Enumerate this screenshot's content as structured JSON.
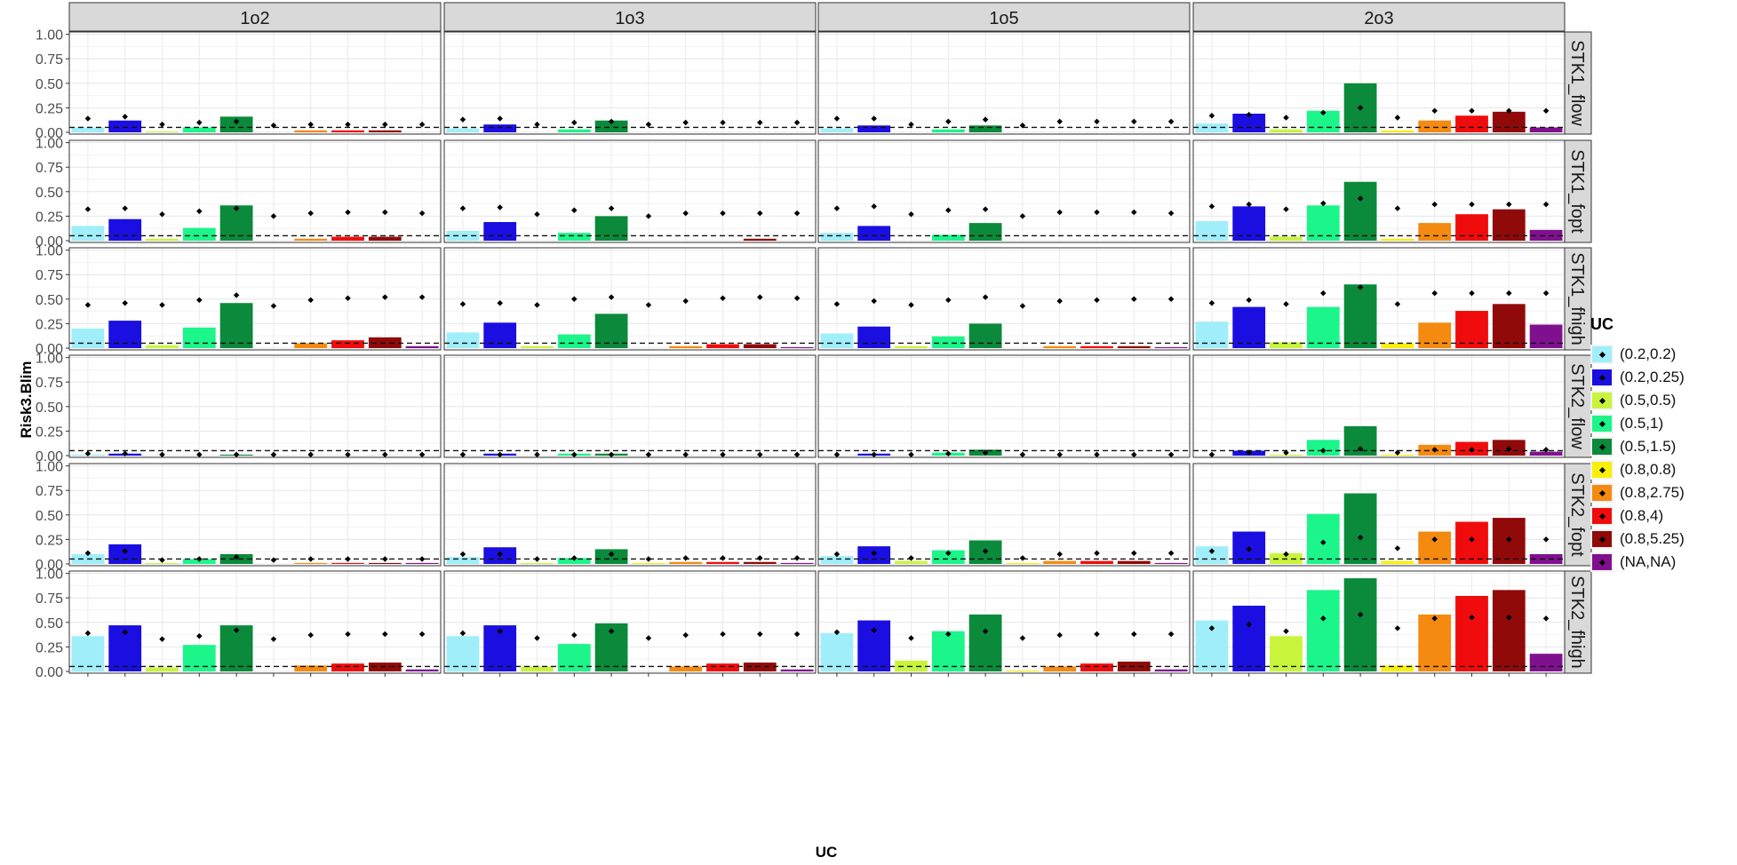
{
  "chart_data": {
    "type": "bar",
    "facet_cols": [
      "1o2",
      "1o3",
      "1o5",
      "2o3"
    ],
    "facet_rows": [
      "STK1_flow",
      "STK1_fopt",
      "STK1_fhigh",
      "STK2_flow",
      "STK2_fopt",
      "STK2_fhigh"
    ],
    "xlabel": "UC",
    "ylabel": "Risk3.Blim",
    "ylim": [
      0,
      1
    ],
    "y_ticks": [
      "0.00",
      "0.25",
      "0.50",
      "0.75",
      "1.00"
    ],
    "reference_line": 0.05,
    "grid": true,
    "legend_title": "UC",
    "legend_position": "right",
    "categories": [
      "(0.2,0.2)",
      "(0.2,0.25)",
      "(0.5,0.5)",
      "(0.5,1)",
      "(0.5,1.5)",
      "(0.8,0.8)",
      "(0.8,2.75)",
      "(0.8,4)",
      "(0.8,5.25)",
      "(NA,NA)"
    ],
    "colors": [
      "#a0eefa",
      "#1a0fe0",
      "#c8f53c",
      "#1cf58a",
      "#0a8a3a",
      "#f8f00a",
      "#f58a10",
      "#f00c0c",
      "#900a0a",
      "#80118e"
    ],
    "panels": [
      {
        "row": "STK1_flow",
        "col": "1o2",
        "bars": [
          0.05,
          0.12,
          0.01,
          0.05,
          0.16,
          0.0,
          0.02,
          0.02,
          0.02,
          0.0
        ],
        "points": [
          0.14,
          0.16,
          0.08,
          0.1,
          0.11,
          0.07,
          0.08,
          0.08,
          0.08,
          0.08
        ]
      },
      {
        "row": "STK1_flow",
        "col": "1o3",
        "bars": [
          0.04,
          0.08,
          0.0,
          0.03,
          0.12,
          0.0,
          0.0,
          0.0,
          0.0,
          0.0
        ],
        "points": [
          0.13,
          0.14,
          0.08,
          0.1,
          0.11,
          0.08,
          0.1,
          0.1,
          0.1,
          0.1
        ]
      },
      {
        "row": "STK1_flow",
        "col": "1o5",
        "bars": [
          0.04,
          0.07,
          0.0,
          0.03,
          0.07,
          0.0,
          0.0,
          0.0,
          0.0,
          0.0
        ],
        "points": [
          0.14,
          0.14,
          0.08,
          0.11,
          0.13,
          0.07,
          0.11,
          0.11,
          0.11,
          0.11
        ]
      },
      {
        "row": "STK1_flow",
        "col": "2o3",
        "bars": [
          0.09,
          0.19,
          0.03,
          0.22,
          0.5,
          0.02,
          0.12,
          0.17,
          0.21,
          0.05
        ],
        "points": [
          0.17,
          0.18,
          0.15,
          0.2,
          0.25,
          0.15,
          0.22,
          0.22,
          0.22,
          0.22
        ]
      },
      {
        "row": "STK1_fopt",
        "col": "1o2",
        "bars": [
          0.15,
          0.22,
          0.02,
          0.13,
          0.36,
          0.0,
          0.02,
          0.04,
          0.04,
          0.0
        ],
        "points": [
          0.32,
          0.33,
          0.27,
          0.3,
          0.33,
          0.25,
          0.28,
          0.29,
          0.29,
          0.28
        ]
      },
      {
        "row": "STK1_fopt",
        "col": "1o3",
        "bars": [
          0.1,
          0.19,
          0.0,
          0.08,
          0.25,
          0.0,
          0.0,
          0.0,
          0.02,
          0.0
        ],
        "points": [
          0.33,
          0.34,
          0.27,
          0.31,
          0.33,
          0.25,
          0.28,
          0.28,
          0.28,
          0.28
        ]
      },
      {
        "row": "STK1_fopt",
        "col": "1o5",
        "bars": [
          0.08,
          0.15,
          0.0,
          0.06,
          0.18,
          0.0,
          0.0,
          0.0,
          0.0,
          0.0
        ],
        "points": [
          0.33,
          0.35,
          0.27,
          0.31,
          0.32,
          0.25,
          0.29,
          0.29,
          0.29,
          0.28
        ]
      },
      {
        "row": "STK1_fopt",
        "col": "2o3",
        "bars": [
          0.2,
          0.35,
          0.04,
          0.36,
          0.6,
          0.02,
          0.18,
          0.27,
          0.32,
          0.11
        ],
        "points": [
          0.35,
          0.37,
          0.32,
          0.38,
          0.43,
          0.33,
          0.37,
          0.37,
          0.37,
          0.37
        ]
      },
      {
        "row": "STK1_fhigh",
        "col": "1o2",
        "bars": [
          0.2,
          0.28,
          0.03,
          0.21,
          0.46,
          0.0,
          0.05,
          0.08,
          0.11,
          0.02
        ],
        "points": [
          0.44,
          0.46,
          0.44,
          0.49,
          0.54,
          0.43,
          0.49,
          0.51,
          0.52,
          0.52
        ]
      },
      {
        "row": "STK1_fhigh",
        "col": "1o3",
        "bars": [
          0.16,
          0.26,
          0.02,
          0.14,
          0.35,
          0.0,
          0.02,
          0.04,
          0.04,
          0.01
        ],
        "points": [
          0.45,
          0.46,
          0.44,
          0.5,
          0.52,
          0.44,
          0.48,
          0.51,
          0.52,
          0.51
        ]
      },
      {
        "row": "STK1_fhigh",
        "col": "1o5",
        "bars": [
          0.15,
          0.22,
          0.02,
          0.12,
          0.25,
          0.0,
          0.02,
          0.02,
          0.02,
          0.01
        ],
        "points": [
          0.45,
          0.48,
          0.44,
          0.49,
          0.52,
          0.43,
          0.48,
          0.49,
          0.5,
          0.5
        ]
      },
      {
        "row": "STK1_fhigh",
        "col": "2o3",
        "bars": [
          0.27,
          0.42,
          0.06,
          0.42,
          0.65,
          0.05,
          0.26,
          0.38,
          0.45,
          0.24
        ],
        "points": [
          0.46,
          0.49,
          0.45,
          0.56,
          0.62,
          0.45,
          0.56,
          0.56,
          0.56,
          0.56
        ]
      },
      {
        "row": "STK2_flow",
        "col": "1o2",
        "bars": [
          0.01,
          0.02,
          0.0,
          0.0,
          0.01,
          0.0,
          0.0,
          0.0,
          0.0,
          0.0
        ],
        "points": [
          0.02,
          0.02,
          0.01,
          0.01,
          0.01,
          0.01,
          0.01,
          0.01,
          0.01,
          0.01
        ]
      },
      {
        "row": "STK2_flow",
        "col": "1o3",
        "bars": [
          0.0,
          0.02,
          0.0,
          0.02,
          0.02,
          0.0,
          0.0,
          0.0,
          0.0,
          0.0
        ],
        "points": [
          0.01,
          0.01,
          0.01,
          0.01,
          0.01,
          0.01,
          0.01,
          0.01,
          0.01,
          0.01
        ]
      },
      {
        "row": "STK2_flow",
        "col": "1o5",
        "bars": [
          0.0,
          0.02,
          0.0,
          0.03,
          0.06,
          0.0,
          0.0,
          0.0,
          0.0,
          0.0
        ],
        "points": [
          0.01,
          0.01,
          0.01,
          0.02,
          0.03,
          0.01,
          0.01,
          0.01,
          0.01,
          0.01
        ]
      },
      {
        "row": "STK2_flow",
        "col": "2o3",
        "bars": [
          0.0,
          0.05,
          0.01,
          0.16,
          0.3,
          0.01,
          0.11,
          0.14,
          0.16,
          0.04
        ],
        "points": [
          0.01,
          0.03,
          0.03,
          0.05,
          0.07,
          0.03,
          0.06,
          0.06,
          0.07,
          0.06
        ]
      },
      {
        "row": "STK2_fopt",
        "col": "1o2",
        "bars": [
          0.1,
          0.2,
          0.01,
          0.05,
          0.1,
          0.0,
          0.01,
          0.01,
          0.01,
          0.01
        ],
        "points": [
          0.11,
          0.13,
          0.04,
          0.05,
          0.07,
          0.04,
          0.05,
          0.05,
          0.05,
          0.05
        ]
      },
      {
        "row": "STK2_fopt",
        "col": "1o3",
        "bars": [
          0.07,
          0.17,
          0.01,
          0.06,
          0.15,
          0.01,
          0.02,
          0.02,
          0.02,
          0.01
        ],
        "points": [
          0.1,
          0.1,
          0.05,
          0.06,
          0.1,
          0.05,
          0.06,
          0.06,
          0.06,
          0.06
        ]
      },
      {
        "row": "STK2_fopt",
        "col": "1o5",
        "bars": [
          0.08,
          0.18,
          0.03,
          0.14,
          0.24,
          0.01,
          0.03,
          0.03,
          0.03,
          0.01
        ],
        "points": [
          0.1,
          0.11,
          0.06,
          0.11,
          0.13,
          0.06,
          0.1,
          0.11,
          0.11,
          0.11
        ]
      },
      {
        "row": "STK2_fopt",
        "col": "2o3",
        "bars": [
          0.18,
          0.33,
          0.11,
          0.51,
          0.72,
          0.03,
          0.33,
          0.43,
          0.47,
          0.1
        ],
        "points": [
          0.13,
          0.15,
          0.1,
          0.22,
          0.27,
          0.16,
          0.25,
          0.25,
          0.25,
          0.25
        ]
      },
      {
        "row": "STK2_fhigh",
        "col": "1o2",
        "bars": [
          0.36,
          0.47,
          0.04,
          0.27,
          0.47,
          0.0,
          0.06,
          0.08,
          0.09,
          0.02
        ],
        "points": [
          0.39,
          0.4,
          0.33,
          0.36,
          0.42,
          0.33,
          0.37,
          0.38,
          0.38,
          0.38
        ]
      },
      {
        "row": "STK2_fhigh",
        "col": "1o3",
        "bars": [
          0.36,
          0.47,
          0.05,
          0.28,
          0.49,
          0.0,
          0.05,
          0.08,
          0.09,
          0.02
        ],
        "points": [
          0.39,
          0.41,
          0.34,
          0.37,
          0.41,
          0.34,
          0.37,
          0.38,
          0.38,
          0.38
        ]
      },
      {
        "row": "STK2_fhigh",
        "col": "1o5",
        "bars": [
          0.39,
          0.52,
          0.11,
          0.41,
          0.58,
          0.01,
          0.05,
          0.08,
          0.1,
          0.02
        ],
        "points": [
          0.4,
          0.42,
          0.34,
          0.38,
          0.41,
          0.34,
          0.37,
          0.38,
          0.38,
          0.38
        ]
      },
      {
        "row": "STK2_fhigh",
        "col": "2o3",
        "bars": [
          0.52,
          0.67,
          0.36,
          0.83,
          0.95,
          0.06,
          0.58,
          0.77,
          0.83,
          0.18
        ],
        "points": [
          0.44,
          0.48,
          0.41,
          0.54,
          0.58,
          0.44,
          0.54,
          0.55,
          0.55,
          0.54
        ]
      }
    ]
  }
}
